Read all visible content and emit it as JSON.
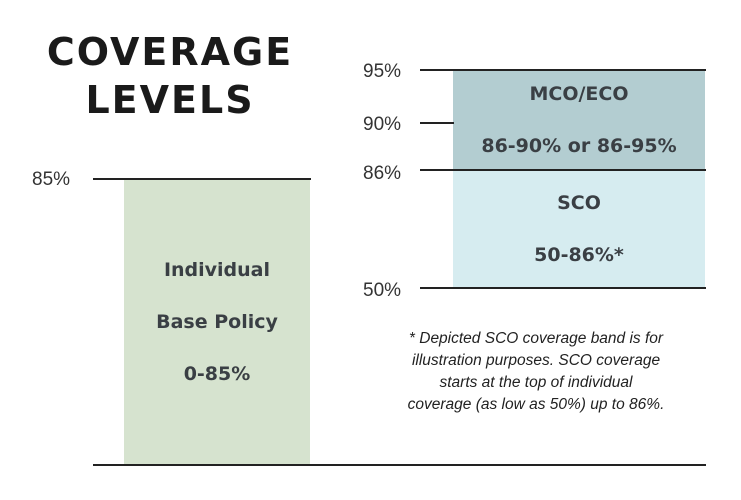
{
  "title": {
    "line1": "COVERAGE",
    "line2": "LEVELS"
  },
  "chart_data": {
    "type": "bar",
    "title": "COVERAGE LEVELS",
    "bands": [
      {
        "label_line1": "Individual",
        "label_line2": "Base Policy",
        "label_line3": "0-85%",
        "from": 0,
        "to": 85,
        "color": "#d6e3cf"
      },
      {
        "label_line1": "SCO",
        "label_line2": "50-86%*",
        "from": 50,
        "to": 86,
        "color": "#d6ecf0"
      },
      {
        "label_line1": "MCO/ECO",
        "label_line2": "86-90% or 86-95%",
        "from": 86,
        "to": 95,
        "color": "#b3cdd1"
      }
    ],
    "left_ticks": [
      "85%"
    ],
    "right_ticks": [
      "95%",
      "90%",
      "86%",
      "50%"
    ]
  },
  "footnote": {
    "line1": "* Depicted SCO coverage band is for",
    "line2": "illustration purposes. SCO coverage",
    "line3": "starts at the top of individual",
    "line4": "coverage (as low as 50%) up to 86%."
  }
}
